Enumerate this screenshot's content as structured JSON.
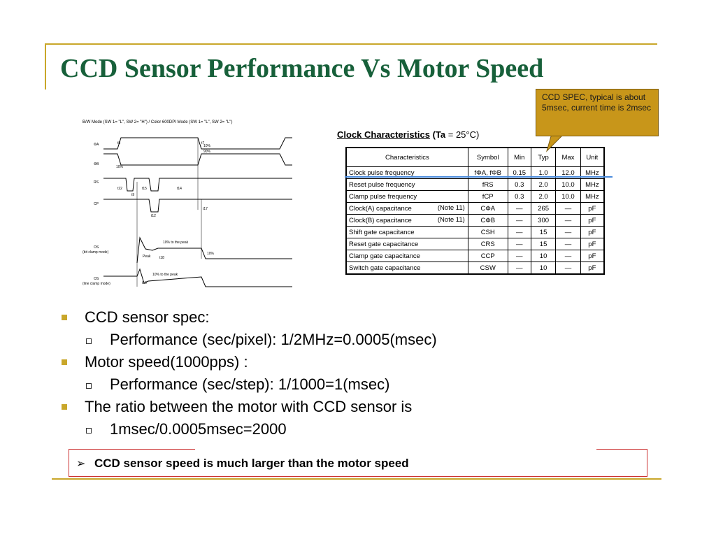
{
  "slide": {
    "title": "CCD Sensor Performance Vs Motor Speed",
    "accent_color": "#c9a72a",
    "title_color": "#17603a"
  },
  "timing_diagram": {
    "mode_header": "B/W Mode (SW 1= \"L\",  SW 2= \"H\") / Color 600DPI Mode (SW 1= \"L\",  SW 2= \"L\")",
    "signal_phi1": "ΦA",
    "signal_phi2": "ΦB",
    "signal_rs": "RS",
    "signal_cp": "CP",
    "signal_os1": "OS",
    "signal_os1_note": "(bit clamp mode)",
    "signal_os2": "OS",
    "signal_os2_note": "(line clamp mode)",
    "pct_10_top": "10%",
    "pct_90": "90%",
    "pct_10_mid": "10%",
    "label_t8": "t8",
    "label_t7": "t7",
    "label_t22": "t22",
    "label_t9": "t9",
    "label_t15": "t15",
    "label_t14": "t14",
    "label_t12": "t12",
    "label_t17": "t17",
    "label_t18": "t18",
    "label_t19": "t19",
    "label_peak1": "10% to the peak",
    "label_peak": "Peak",
    "label_10pct": "10%",
    "label_peak2": "10% to the peak"
  },
  "clock": {
    "title": "Clock Characteristics",
    "condition_open": "(Ta",
    "condition_value": " = 25°C)",
    "headers": [
      "Characteristics",
      "Symbol",
      "Min",
      "Typ",
      "Max",
      "Unit"
    ],
    "rows": [
      {
        "name": "Clock pulse frequency",
        "note": "",
        "symbol": "fΦA, fΦB",
        "min": "0.15",
        "typ": "1.0",
        "max": "12.0",
        "unit": "MHz"
      },
      {
        "name": "Reset pulse frequency",
        "note": "",
        "symbol": "fRS",
        "min": "0.3",
        "typ": "2.0",
        "max": "10.0",
        "unit": "MHz"
      },
      {
        "name": "Clamp pulse frequency",
        "note": "",
        "symbol": "fCP",
        "min": "0.3",
        "typ": "2.0",
        "max": "10.0",
        "unit": "MHz"
      },
      {
        "name": "Clock(A) capacitance",
        "note": "(Note 11)",
        "symbol": "CΦA",
        "min": "—",
        "typ": "265",
        "max": "—",
        "unit": "pF"
      },
      {
        "name": "Clock(B) capacitance",
        "note": "(Note 11)",
        "symbol": "CΦB",
        "min": "—",
        "typ": "300",
        "max": "—",
        "unit": "pF"
      },
      {
        "name": "Shift gate capacitance",
        "note": "",
        "symbol": "CSH",
        "min": "—",
        "typ": "15",
        "max": "—",
        "unit": "pF"
      },
      {
        "name": "Reset gate capacitance",
        "note": "",
        "symbol": "CRS",
        "min": "—",
        "typ": "15",
        "max": "—",
        "unit": "pF"
      },
      {
        "name": "Clamp gate capacitance",
        "note": "",
        "symbol": "CCP",
        "min": "—",
        "typ": "10",
        "max": "—",
        "unit": "pF"
      },
      {
        "name": "Switch gate capacitance",
        "note": "",
        "symbol": "CSW",
        "min": "—",
        "typ": "10",
        "max": "—",
        "unit": "pF"
      }
    ]
  },
  "callout": {
    "text": "CCD SPEC, typical is about  5msec, current time is 2msec",
    "color": "#c8961a"
  },
  "bullets": [
    {
      "level": 1,
      "text": "CCD sensor spec:"
    },
    {
      "level": 2,
      "text": "Performance (sec/pixel): 1/2MHz=0.0005(msec)"
    },
    {
      "level": 1,
      "text": "Motor speed(1000pps) :"
    },
    {
      "level": 2,
      "text": "Performance (sec/step): 1/1000=1(msec)"
    },
    {
      "level": 1,
      "text": "The ratio between the motor with CCD sensor is"
    },
    {
      "level": 2,
      "text": "1msec/0.0005msec=2000"
    }
  ],
  "conclusion": {
    "marker": "➢",
    "text": "CCD sensor speed is much larger than the motor speed"
  }
}
